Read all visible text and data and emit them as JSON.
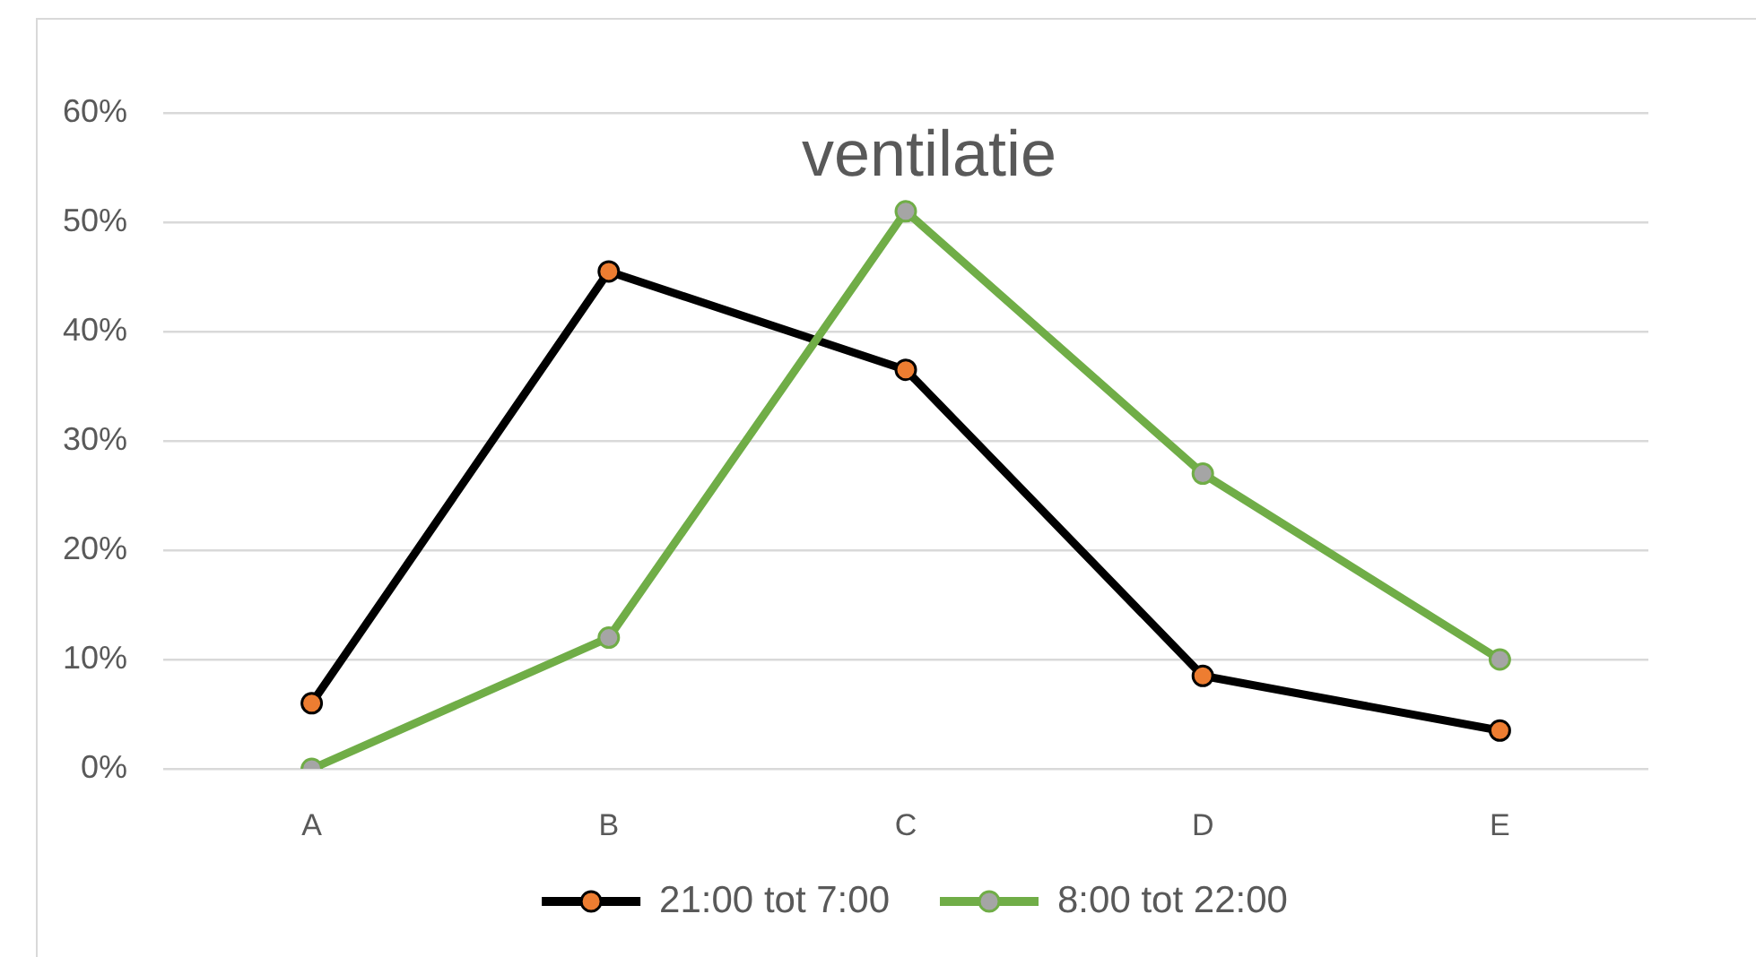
{
  "chart_data": {
    "type": "line",
    "title": "ventilatie",
    "categories": [
      "A",
      "B",
      "C",
      "D",
      "E"
    ],
    "series": [
      {
        "name": "21:00 tot 7:00",
        "color": "#000000",
        "colors": [
          "#ed7d31",
          "#ed7d31",
          "#ed7d31",
          "#ed7d31",
          "#ed7d31"
        ],
        "values": [
          6,
          45.5,
          36.5,
          8.5,
          3.5
        ]
      },
      {
        "name": "8:00 tot 22:00",
        "color": "#70ad47",
        "colors": [
          "#a5a5a5",
          "#a5a5a5",
          "#a5a5a5",
          "#a5a5a5",
          "#a5a5a5"
        ],
        "values": [
          0,
          12,
          51,
          27,
          10
        ]
      }
    ],
    "ylim": [
      0,
      60
    ],
    "yticks": [
      {
        "value": 0,
        "label": "0%"
      },
      {
        "value": 10,
        "label": "10%"
      },
      {
        "value": 20,
        "label": "20%"
      },
      {
        "value": 30,
        "label": "30%"
      },
      {
        "value": 40,
        "label": "40%"
      },
      {
        "value": 50,
        "label": "50%"
      },
      {
        "value": 60,
        "label": "60%"
      }
    ],
    "grid": "y",
    "legend": "bottom",
    "marker": "circle",
    "line_style": "solid"
  }
}
